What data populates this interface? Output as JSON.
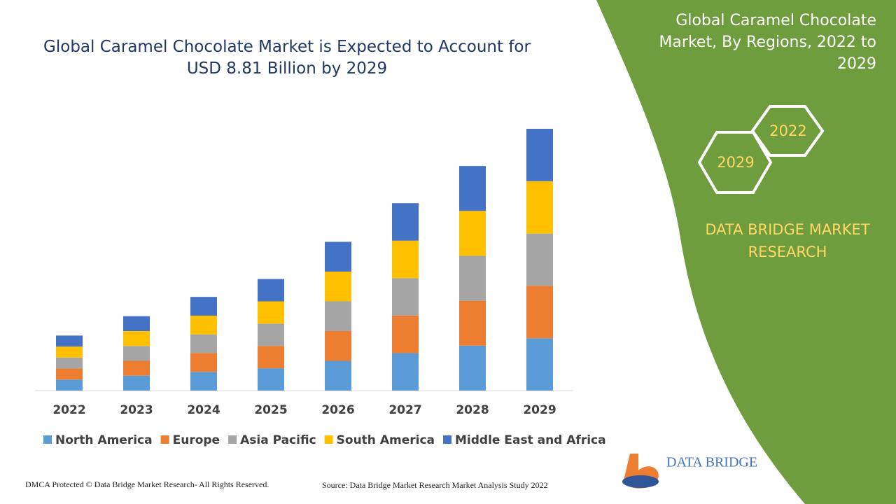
{
  "title": "Global Caramel Chocolate Market is Expected to Account for USD 8.81 Billion by 2029",
  "side_title": "Global Caramel Chocolate Market, By Regions, 2022 to 2029",
  "hexagons": [
    "2022",
    "2029"
  ],
  "brand": "DATA BRIDGE MARKET RESEARCH",
  "logo_text": "DATA BRIDGE",
  "footer_left": "DMCA Protected © Data Bridge Market Research- All Rights Reserved.",
  "footer_right": "Source: Data Bridge Market Research Market Analysis Study 2022",
  "chart_data": {
    "type": "stacked-bar",
    "categories": [
      "2022",
      "2023",
      "2024",
      "2025",
      "2026",
      "2027",
      "2028",
      "2029"
    ],
    "series": [
      {
        "name": "North America",
        "color": "#5b9bd5",
        "values": [
          0.37,
          0.5,
          0.63,
          0.75,
          1.0,
          1.26,
          1.51,
          1.76
        ]
      },
      {
        "name": "Europe",
        "color": "#ed7d31",
        "values": [
          0.37,
          0.5,
          0.63,
          0.75,
          1.0,
          1.26,
          1.51,
          1.76
        ]
      },
      {
        "name": "Asia Pacific",
        "color": "#a5a5a5",
        "values": [
          0.37,
          0.5,
          0.63,
          0.75,
          1.0,
          1.26,
          1.51,
          1.76
        ]
      },
      {
        "name": "South America",
        "color": "#ffc000",
        "values": [
          0.37,
          0.5,
          0.63,
          0.75,
          1.0,
          1.26,
          1.51,
          1.76
        ]
      },
      {
        "name": "Middle East and Africa",
        "color": "#4472c4",
        "values": [
          0.37,
          0.5,
          0.63,
          0.75,
          1.0,
          1.26,
          1.51,
          1.76
        ]
      }
    ]
  }
}
